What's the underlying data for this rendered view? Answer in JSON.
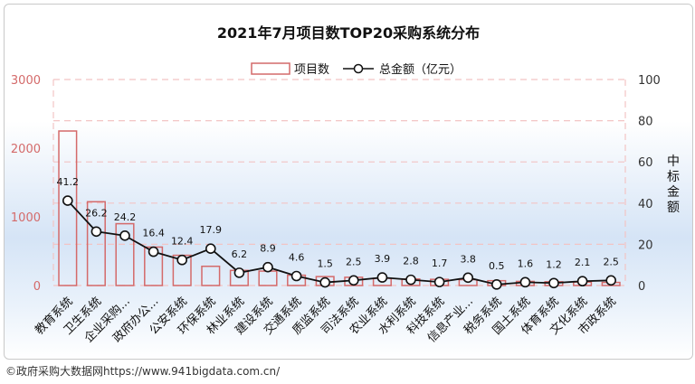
{
  "chart_data": {
    "type": "bar+line",
    "title": "2021年7月项目数TOP20采购系统分布",
    "categories": [
      "教育系统",
      "卫生系统",
      "企业采购...",
      "政府办公...",
      "公安系统",
      "环保系统",
      "林业系统",
      "建设系统",
      "交通系统",
      "质监系统",
      "司法系统",
      "农业系统",
      "水利系统",
      "科技系统",
      "信息产业...",
      "税务系统",
      "国土系统",
      "体育系统",
      "文化系统",
      "市政系统"
    ],
    "series": [
      {
        "name": "项目数",
        "kind": "bar",
        "axis": "left",
        "values": [
          2250,
          1220,
          900,
          560,
          440,
          280,
          220,
          210,
          150,
          130,
          120,
          105,
          95,
          90,
          85,
          70,
          60,
          55,
          50,
          45
        ]
      },
      {
        "name": "总金额（亿元）",
        "kind": "line",
        "axis": "right",
        "values": [
          41.2,
          26.2,
          24.2,
          16.4,
          12.4,
          17.9,
          6.2,
          8.9,
          4.6,
          1.5,
          2.5,
          3.9,
          2.8,
          1.7,
          3.8,
          0.5,
          1.6,
          1.2,
          2.1,
          2.5
        ]
      }
    ],
    "y_left": {
      "min": 0,
      "max": 3000,
      "ticks": [
        "0",
        "1000",
        "2000",
        "3000"
      ]
    },
    "y_right": {
      "min": 0,
      "max": 100,
      "ticks": [
        "0",
        "20",
        "40",
        "60",
        "80",
        "100"
      ],
      "label": "中标金额"
    },
    "legend": {
      "placement": "top-center"
    },
    "colors": {
      "bar_stroke": "#d46a6a",
      "line": "#111111",
      "grid": "#f2c4c4"
    }
  },
  "footer": {
    "source": "©政府采购大数据网https://www.941bigdata.com.cn/"
  }
}
